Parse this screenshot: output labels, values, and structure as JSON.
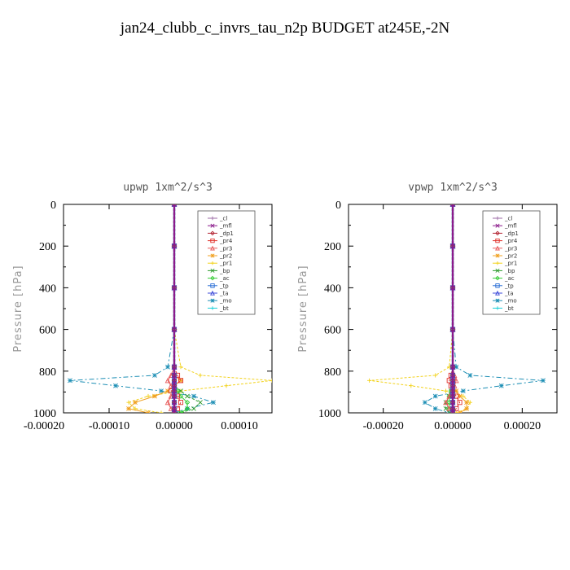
{
  "title": "jan24_clubb_c_invrs_tau_n2p  BUDGET at245E,-2N",
  "legend_order": [
    "_cl",
    "_mfl",
    "_dp1",
    "_pr4",
    "_pr3",
    "_pr2",
    "_pr1",
    "_bp",
    "_ac",
    "_tp",
    "_ta",
    "_mo",
    "_bt"
  ],
  "colors": {
    "_cl": "#9b6aa6",
    "_mfl": "#8b1a8b",
    "_dp1": "#b22230",
    "_pr4": "#e0302a",
    "_pr3": "#e85a5a",
    "_pr2": "#f0a020",
    "_pr1": "#f2d21b",
    "_bp": "#2f9a2f",
    "_ac": "#33cc33",
    "_tp": "#2a6fd6",
    "_ta": "#3b48d8",
    "_mo": "#1e8fb5",
    "_bt": "#18d0d8"
  },
  "chart_data": [
    {
      "type": "line",
      "title": "upwp   1xm^2/s^3",
      "ylabel": "Pressure [hPa]",
      "xlim": [
        -0.00017,
        0.00015
      ],
      "ylim": [
        1000,
        0
      ],
      "xticks": [
        -0.0002,
        -0.0001,
        0.0,
        0.0001
      ],
      "xtick_labels": [
        "-0.00020",
        "-0.00010",
        "0.00000",
        "0.00010"
      ],
      "yticks": [
        0,
        200,
        400,
        600,
        800,
        1000
      ],
      "ytick_labels": [
        "0",
        "200",
        "400",
        "600",
        "800",
        "1000"
      ],
      "legend": [
        "_cl",
        "_mfl",
        "_dp1",
        "_pr4",
        "_pr3",
        "_pr2",
        "_pr1",
        "_bp",
        "_ac",
        "_tp",
        "_ta",
        "_mo",
        "_bt"
      ],
      "series": [
        {
          "name": "_mo",
          "x": [
            0,
            0,
            0,
            0,
            -1e-05,
            -3e-05,
            -0.00016,
            -9e-05,
            -2e-05,
            3e-05,
            6e-05,
            2e-05,
            0
          ],
          "y": [
            0,
            200,
            400,
            600,
            780,
            820,
            845,
            870,
            895,
            920,
            950,
            980,
            1000
          ]
        },
        {
          "name": "_pr1",
          "x": [
            0,
            0,
            0,
            0,
            1e-05,
            4e-05,
            0.00015,
            8e-05,
            1e-05,
            -4e-05,
            -7e-05,
            -6e-05,
            -2e-05
          ],
          "y": [
            0,
            200,
            400,
            600,
            780,
            820,
            845,
            870,
            895,
            920,
            950,
            980,
            1000
          ]
        },
        {
          "name": "_pr2",
          "x": [
            0,
            0,
            0,
            0,
            0,
            0,
            1e-05,
            0,
            -1e-05,
            -3e-05,
            -6e-05,
            -7e-05,
            -4e-05
          ],
          "y": [
            0,
            200,
            400,
            600,
            780,
            820,
            845,
            870,
            895,
            920,
            950,
            980,
            1000
          ]
        },
        {
          "name": "_bp",
          "x": [
            0,
            0,
            0,
            0,
            0,
            0,
            0,
            0,
            1e-05,
            2e-05,
            4e-05,
            3e-05,
            1e-05
          ],
          "y": [
            0,
            200,
            400,
            600,
            780,
            820,
            845,
            870,
            895,
            920,
            950,
            980,
            1000
          ]
        },
        {
          "name": "_ac",
          "x": [
            0,
            0,
            0,
            0,
            0,
            0,
            0,
            0,
            5e-06,
            1e-05,
            2e-05,
            2e-05,
            1e-05
          ],
          "y": [
            0,
            200,
            400,
            600,
            780,
            820,
            845,
            870,
            895,
            920,
            950,
            980,
            1000
          ]
        },
        {
          "name": "_pr4",
          "x": [
            0,
            0,
            0,
            0,
            0,
            5e-06,
            1e-05,
            0,
            -5e-06,
            5e-06,
            1e-05,
            5e-06,
            0
          ],
          "y": [
            0,
            200,
            400,
            600,
            780,
            820,
            845,
            870,
            895,
            920,
            950,
            980,
            1000
          ]
        },
        {
          "name": "_pr3",
          "x": [
            0,
            0,
            0,
            0,
            0,
            -5e-06,
            -1e-05,
            -5e-06,
            0,
            -5e-06,
            -1e-05,
            -5e-06,
            0
          ],
          "y": [
            0,
            200,
            400,
            600,
            780,
            820,
            845,
            870,
            895,
            920,
            950,
            980,
            1000
          ]
        },
        {
          "name": "_tp",
          "x": [
            0,
            0,
            0,
            0,
            0,
            0,
            0,
            0,
            0,
            0,
            0,
            0,
            0
          ],
          "y": [
            0,
            200,
            400,
            600,
            780,
            820,
            845,
            870,
            895,
            920,
            950,
            980,
            1000
          ]
        },
        {
          "name": "_ta",
          "x": [
            0,
            0,
            0,
            0,
            0,
            0,
            0,
            0,
            0,
            0,
            0,
            0,
            0
          ],
          "y": [
            0,
            200,
            400,
            600,
            780,
            820,
            845,
            870,
            895,
            920,
            950,
            980,
            1000
          ]
        },
        {
          "name": "_cl",
          "x": [
            0,
            0,
            0,
            0,
            0,
            0,
            0,
            0,
            0,
            0,
            0,
            0,
            0
          ],
          "y": [
            0,
            200,
            400,
            600,
            780,
            820,
            845,
            870,
            895,
            920,
            950,
            980,
            1000
          ]
        },
        {
          "name": "_bt",
          "x": [
            0,
            0,
            0,
            0,
            0,
            0,
            0,
            0,
            0,
            0,
            0,
            0,
            0
          ],
          "y": [
            0,
            200,
            400,
            600,
            780,
            820,
            845,
            870,
            895,
            920,
            950,
            980,
            1000
          ]
        },
        {
          "name": "_dp1",
          "x": [
            0,
            0,
            0,
            0,
            0,
            0,
            0,
            0,
            0,
            0,
            0,
            0,
            0
          ],
          "y": [
            0,
            200,
            400,
            600,
            780,
            820,
            845,
            870,
            895,
            920,
            950,
            980,
            1000
          ]
        },
        {
          "name": "_mfl",
          "x": [
            0,
            0,
            0,
            0,
            0,
            0,
            0,
            0,
            0,
            0,
            0,
            0,
            0
          ],
          "y": [
            0,
            200,
            400,
            600,
            780,
            820,
            845,
            870,
            895,
            920,
            950,
            980,
            1000
          ]
        }
      ]
    },
    {
      "type": "line",
      "title": "vpwp   1xm^2/s^3",
      "ylabel": "Pressure [hPa]",
      "xlim": [
        -0.0003,
        0.0003
      ],
      "ylim": [
        1000,
        0
      ],
      "xticks": [
        -0.0002,
        0.0,
        0.0002
      ],
      "xtick_labels": [
        "-0.00020",
        "0.00000",
        "0.00020"
      ],
      "yticks": [
        0,
        200,
        400,
        600,
        800,
        1000
      ],
      "ytick_labels": [
        "0",
        "200",
        "400",
        "600",
        "800",
        "1000"
      ],
      "legend": [
        "_cl",
        "_mfl",
        "_dp1",
        "_pr4",
        "_pr3",
        "_pr2",
        "_pr1",
        "_bp",
        "_ac",
        "_tp",
        "_ta",
        "_mo",
        "_bt"
      ],
      "series": [
        {
          "name": "_mo",
          "x": [
            0,
            0,
            0,
            0,
            1e-05,
            5e-05,
            0.00026,
            0.00014,
            3e-05,
            -5e-05,
            -8e-05,
            -5e-05,
            -1e-05
          ],
          "y": [
            0,
            200,
            400,
            600,
            780,
            820,
            845,
            870,
            895,
            920,
            950,
            980,
            1000
          ]
        },
        {
          "name": "_pr1",
          "x": [
            0,
            0,
            0,
            0,
            -1e-05,
            -5e-05,
            -0.00024,
            -0.00012,
            -2e-05,
            3e-05,
            5e-05,
            4e-05,
            1e-05
          ],
          "y": [
            0,
            200,
            400,
            600,
            780,
            820,
            845,
            870,
            895,
            920,
            950,
            980,
            1000
          ]
        },
        {
          "name": "_pr2",
          "x": [
            0,
            0,
            0,
            0,
            0,
            0,
            0,
            0,
            1e-05,
            2e-05,
            4e-05,
            4e-05,
            2e-05
          ],
          "y": [
            0,
            200,
            400,
            600,
            780,
            820,
            845,
            870,
            895,
            920,
            950,
            980,
            1000
          ]
        },
        {
          "name": "_bp",
          "x": [
            0,
            0,
            0,
            0,
            0,
            0,
            0,
            0,
            -5e-06,
            -1e-05,
            -2e-05,
            -2e-05,
            -1e-05
          ],
          "y": [
            0,
            200,
            400,
            600,
            780,
            820,
            845,
            870,
            895,
            920,
            950,
            980,
            1000
          ]
        },
        {
          "name": "_ac",
          "x": [
            0,
            0,
            0,
            0,
            0,
            0,
            0,
            0,
            -5e-06,
            -1e-05,
            -1e-05,
            -1e-05,
            0
          ],
          "y": [
            0,
            200,
            400,
            600,
            780,
            820,
            845,
            870,
            895,
            920,
            950,
            980,
            1000
          ]
        },
        {
          "name": "_pr4",
          "x": [
            0,
            0,
            0,
            0,
            0,
            -5e-06,
            -1e-05,
            -5e-06,
            0,
            1e-05,
            2e-05,
            1e-05,
            0
          ],
          "y": [
            0,
            200,
            400,
            600,
            780,
            820,
            845,
            870,
            895,
            920,
            950,
            980,
            1000
          ]
        },
        {
          "name": "_pr3",
          "x": [
            0,
            0,
            0,
            0,
            0,
            5e-06,
            1e-05,
            5e-06,
            0,
            -1e-05,
            -2e-05,
            -1e-05,
            0
          ],
          "y": [
            0,
            200,
            400,
            600,
            780,
            820,
            845,
            870,
            895,
            920,
            950,
            980,
            1000
          ]
        },
        {
          "name": "_tp",
          "x": [
            0,
            0,
            0,
            0,
            0,
            0,
            0,
            0,
            0,
            0,
            0,
            0,
            0
          ],
          "y": [
            0,
            200,
            400,
            600,
            780,
            820,
            845,
            870,
            895,
            920,
            950,
            980,
            1000
          ]
        },
        {
          "name": "_ta",
          "x": [
            0,
            0,
            0,
            0,
            0,
            0,
            0,
            0,
            0,
            0,
            0,
            0,
            0
          ],
          "y": [
            0,
            200,
            400,
            600,
            780,
            820,
            845,
            870,
            895,
            920,
            950,
            980,
            1000
          ]
        },
        {
          "name": "_cl",
          "x": [
            0,
            0,
            0,
            0,
            0,
            0,
            0,
            0,
            0,
            0,
            0,
            0,
            0
          ],
          "y": [
            0,
            200,
            400,
            600,
            780,
            820,
            845,
            870,
            895,
            920,
            950,
            980,
            1000
          ]
        },
        {
          "name": "_bt",
          "x": [
            0,
            0,
            0,
            0,
            0,
            0,
            0,
            0,
            0,
            0,
            0,
            0,
            0
          ],
          "y": [
            0,
            200,
            400,
            600,
            780,
            820,
            845,
            870,
            895,
            920,
            950,
            980,
            1000
          ]
        },
        {
          "name": "_dp1",
          "x": [
            0,
            0,
            0,
            0,
            0,
            0,
            0,
            0,
            0,
            0,
            0,
            0,
            0
          ],
          "y": [
            0,
            200,
            400,
            600,
            780,
            820,
            845,
            870,
            895,
            920,
            950,
            980,
            1000
          ]
        },
        {
          "name": "_mfl",
          "x": [
            0,
            0,
            0,
            0,
            0,
            0,
            0,
            0,
            0,
            0,
            0,
            0,
            0
          ],
          "y": [
            0,
            200,
            400,
            600,
            780,
            820,
            845,
            870,
            895,
            920,
            950,
            980,
            1000
          ]
        }
      ]
    }
  ]
}
